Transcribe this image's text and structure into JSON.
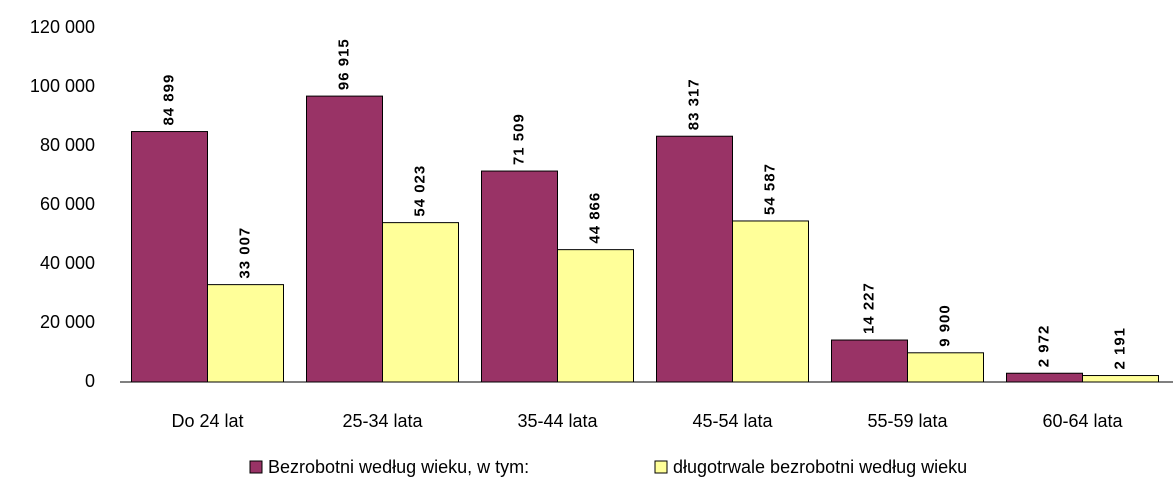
{
  "chart_data": {
    "type": "bar",
    "categories": [
      "Do 24 lat",
      "25-34 lata",
      "35-44 lata",
      "45-54 lata",
      "55-59 lata",
      "60-64 lata"
    ],
    "series": [
      {
        "name": "Bezrobotni według wieku, w tym:",
        "color": "#993366",
        "values": [
          84899,
          96915,
          71509,
          83317,
          14227,
          2972
        ],
        "value_labels": [
          "84 899",
          "96 915",
          "71 509",
          "83 317",
          "14 227",
          "2 972"
        ]
      },
      {
        "name": "długotrwale bezrobotni według wieku",
        "color": "#ffff99",
        "values": [
          33007,
          54023,
          44866,
          54587,
          9900,
          2191
        ],
        "value_labels": [
          "33 007",
          "54 023",
          "44 866",
          "54 587",
          "9 900",
          "2 191"
        ]
      }
    ],
    "ylim": [
      0,
      120000
    ],
    "yticks": [
      0,
      {
        "value": 20000,
        "label": "20 000"
      },
      {
        "value": 40000,
        "label": "40 000"
      },
      {
        "value": 60000,
        "label": "60 000"
      },
      {
        "value": 80000,
        "label": "80 000"
      },
      {
        "value": 100000,
        "label": "100 000"
      },
      {
        "value": 120000,
        "label": "120 000"
      }
    ],
    "legend": "bottom"
  }
}
